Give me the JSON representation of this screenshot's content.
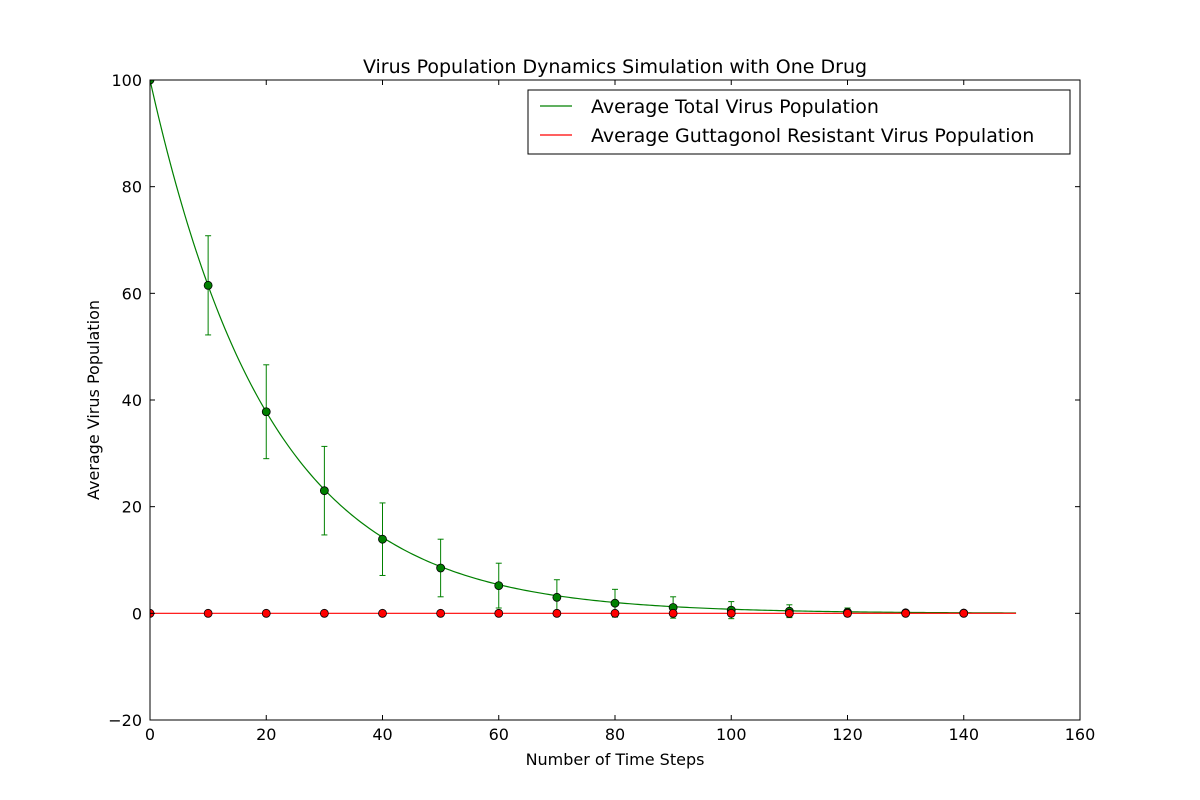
{
  "chart_data": {
    "type": "line",
    "title": "Virus Population Dynamics Simulation with One Drug",
    "xlabel": "Number of Time Steps",
    "ylabel": "Average Virus Population",
    "xlim": [
      0,
      160
    ],
    "ylim": [
      -20,
      100
    ],
    "xticks": [
      0,
      20,
      40,
      60,
      80,
      100,
      120,
      140,
      160
    ],
    "yticks": [
      -20,
      0,
      20,
      40,
      60,
      80,
      100
    ],
    "grid": false,
    "legend_position": "top-right",
    "series": [
      {
        "name": "Average Total Virus Population",
        "color": "#008000",
        "curve": {
          "start": 0,
          "end": 149,
          "initial": 100,
          "decay": 0.0487
        },
        "points": [
          {
            "x": 0,
            "y": 100,
            "err": 0
          },
          {
            "x": 10,
            "y": 61.5,
            "err": 9.3
          },
          {
            "x": 20,
            "y": 37.8,
            "err": 8.8
          },
          {
            "x": 30,
            "y": 23.0,
            "err": 8.3
          },
          {
            "x": 40,
            "y": 13.9,
            "err": 6.8
          },
          {
            "x": 50,
            "y": 8.5,
            "err": 5.4
          },
          {
            "x": 60,
            "y": 5.2,
            "err": 4.2
          },
          {
            "x": 70,
            "y": 3.0,
            "err": 3.3
          },
          {
            "x": 80,
            "y": 1.9,
            "err": 2.6
          },
          {
            "x": 90,
            "y": 1.1,
            "err": 2.0
          },
          {
            "x": 100,
            "y": 0.6,
            "err": 1.6
          },
          {
            "x": 110,
            "y": 0.4,
            "err": 1.2
          },
          {
            "x": 120,
            "y": 0.2,
            "err": 0.8
          },
          {
            "x": 130,
            "y": 0.1,
            "err": 0.4
          },
          {
            "x": 140,
            "y": 0.05,
            "err": 0.2
          }
        ]
      },
      {
        "name": "Average Guttagonol Resistant Virus Population",
        "color": "#ff0000",
        "curve": {
          "start": 0,
          "end": 149,
          "initial": 0,
          "decay": 0
        },
        "points": [
          {
            "x": 0,
            "y": 0
          },
          {
            "x": 10,
            "y": 0
          },
          {
            "x": 20,
            "y": 0
          },
          {
            "x": 30,
            "y": 0
          },
          {
            "x": 40,
            "y": 0
          },
          {
            "x": 50,
            "y": 0
          },
          {
            "x": 60,
            "y": 0
          },
          {
            "x": 70,
            "y": 0
          },
          {
            "x": 80,
            "y": 0
          },
          {
            "x": 90,
            "y": 0
          },
          {
            "x": 100,
            "y": 0
          },
          {
            "x": 110,
            "y": 0
          },
          {
            "x": 120,
            "y": 0
          },
          {
            "x": 130,
            "y": 0
          },
          {
            "x": 140,
            "y": 0
          }
        ]
      }
    ]
  }
}
